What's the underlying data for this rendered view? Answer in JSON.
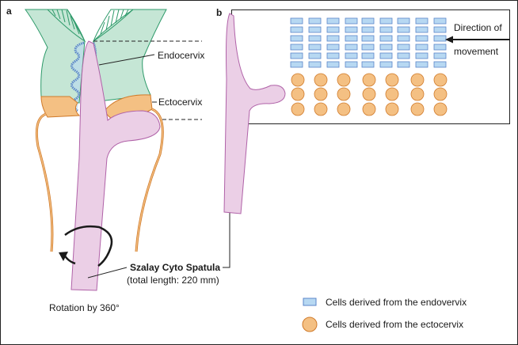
{
  "panels": {
    "a": {
      "label": "a",
      "endocervix": "Endocervix",
      "ectocervix": "Ectocervix",
      "spatula_name": "Szalay Cyto Spatula",
      "spatula_length": "(total length: 220 mm)",
      "rotation": "Rotation by 360°"
    },
    "b": {
      "label": "b",
      "direction_line1": "Direction of",
      "direction_line2": "movement"
    }
  },
  "legend": {
    "endo": "Cells derived from the endovervix",
    "ecto": "Cells derived from the ectocervix"
  },
  "colors": {
    "tissue_green": "#c5e6d5",
    "endo_blue": "#b7d8f2",
    "endo_stroke": "#5b86c9",
    "ecto_orange": "#f4c083",
    "ecto_stroke": "#d07a2a",
    "spatula_pink": "#ebcfe6",
    "spatula_stroke": "#b062a8"
  }
}
